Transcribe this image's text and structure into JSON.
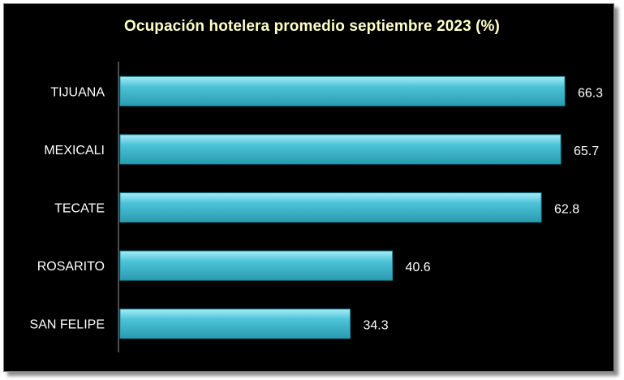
{
  "chart_data": {
    "type": "bar",
    "orientation": "horizontal",
    "title": "Ocupación hotelera promedio septiembre 2023  (%)",
    "categories": [
      "TIJUANA",
      "MEXICALI",
      "TECATE",
      "ROSARITO",
      "SAN FELIPE"
    ],
    "values": [
      66.3,
      65.7,
      62.8,
      40.6,
      34.3
    ],
    "data_labels": [
      "66.3",
      "65.7",
      "62.8",
      "40.6",
      "34.3"
    ],
    "xlim": [
      0,
      68
    ],
    "grid": false,
    "legend": "none",
    "colors": {
      "background": "#000000",
      "bar": "#3fb6cc",
      "bar_highlight": "#9fe6f2",
      "title": "#ffffc8",
      "text": "#ffffff"
    }
  }
}
